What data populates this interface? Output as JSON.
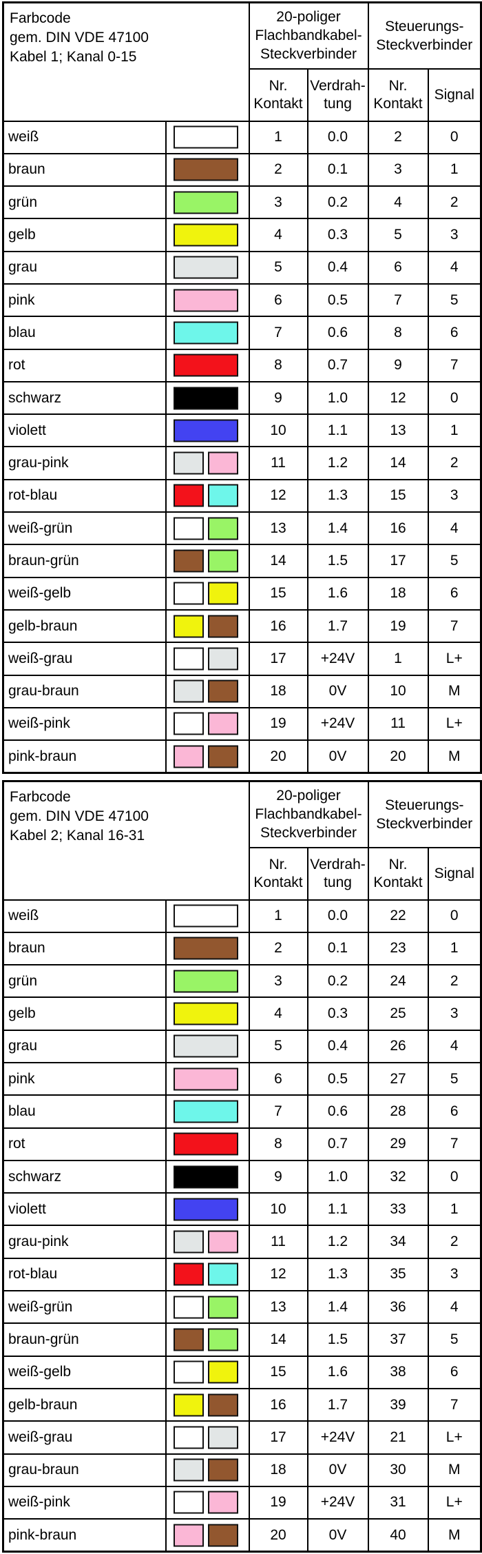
{
  "colors": {
    "weiß": "#ffffff",
    "braun": "#92572f",
    "grün": "#99f466",
    "gelb": "#f0f30d",
    "grau": "#e2e6e6",
    "pink": "#fbb7d6",
    "blau": "#6ef6ea",
    "rot": "#f3121b",
    "schwarz": "#000000",
    "violett": "#4343f1"
  },
  "headers": {
    "group1_line1": "20-poliger",
    "group1_line2": "Flachbandkabel-",
    "group1_line3": "Steckverbinder",
    "group2_line1": "Steuerungs-",
    "group2_line2": "Steckverbinder",
    "nr_line1": "Nr.",
    "nr_line2": "Kontakt",
    "wiring_line1": "Verdrah-",
    "wiring_line2": "tung",
    "signal": "Signal"
  },
  "tables": [
    {
      "title_line1": "Farbcode",
      "title_line2": "gem. DIN VDE 47100",
      "title_line3": "Kabel 1; Kanal 0-15",
      "rows": [
        {
          "name": "weiß",
          "swatches": [
            "weiß"
          ],
          "contact": "1",
          "wiring": "0.0",
          "ctrl": "2",
          "signal": "0"
        },
        {
          "name": "braun",
          "swatches": [
            "braun"
          ],
          "contact": "2",
          "wiring": "0.1",
          "ctrl": "3",
          "signal": "1"
        },
        {
          "name": "grün",
          "swatches": [
            "grün"
          ],
          "contact": "3",
          "wiring": "0.2",
          "ctrl": "4",
          "signal": "2"
        },
        {
          "name": "gelb",
          "swatches": [
            "gelb"
          ],
          "contact": "4",
          "wiring": "0.3",
          "ctrl": "5",
          "signal": "3"
        },
        {
          "name": "grau",
          "swatches": [
            "grau"
          ],
          "contact": "5",
          "wiring": "0.4",
          "ctrl": "6",
          "signal": "4"
        },
        {
          "name": "pink",
          "swatches": [
            "pink"
          ],
          "contact": "6",
          "wiring": "0.5",
          "ctrl": "7",
          "signal": "5"
        },
        {
          "name": "blau",
          "swatches": [
            "blau"
          ],
          "contact": "7",
          "wiring": "0.6",
          "ctrl": "8",
          "signal": "6"
        },
        {
          "name": "rot",
          "swatches": [
            "rot"
          ],
          "contact": "8",
          "wiring": "0.7",
          "ctrl": "9",
          "signal": "7"
        },
        {
          "name": "schwarz",
          "swatches": [
            "schwarz"
          ],
          "contact": "9",
          "wiring": "1.0",
          "ctrl": "12",
          "signal": "0"
        },
        {
          "name": "violett",
          "swatches": [
            "violett"
          ],
          "contact": "10",
          "wiring": "1.1",
          "ctrl": "13",
          "signal": "1"
        },
        {
          "name": "grau-pink",
          "swatches": [
            "grau",
            "pink"
          ],
          "contact": "11",
          "wiring": "1.2",
          "ctrl": "14",
          "signal": "2"
        },
        {
          "name": "rot-blau",
          "swatches": [
            "rot",
            "blau"
          ],
          "contact": "12",
          "wiring": "1.3",
          "ctrl": "15",
          "signal": "3"
        },
        {
          "name": "weiß-grün",
          "swatches": [
            "weiß",
            "grün"
          ],
          "contact": "13",
          "wiring": "1.4",
          "ctrl": "16",
          "signal": "4"
        },
        {
          "name": "braun-grün",
          "swatches": [
            "braun",
            "grün"
          ],
          "contact": "14",
          "wiring": "1.5",
          "ctrl": "17",
          "signal": "5"
        },
        {
          "name": "weiß-gelb",
          "swatches": [
            "weiß",
            "gelb"
          ],
          "contact": "15",
          "wiring": "1.6",
          "ctrl": "18",
          "signal": "6"
        },
        {
          "name": "gelb-braun",
          "swatches": [
            "gelb",
            "braun"
          ],
          "contact": "16",
          "wiring": "1.7",
          "ctrl": "19",
          "signal": "7"
        },
        {
          "name": "weiß-grau",
          "swatches": [
            "weiß",
            "grau"
          ],
          "contact": "17",
          "wiring": "+24V",
          "ctrl": "1",
          "signal": "L+"
        },
        {
          "name": "grau-braun",
          "swatches": [
            "grau",
            "braun"
          ],
          "contact": "18",
          "wiring": "0V",
          "ctrl": "10",
          "signal": "M"
        },
        {
          "name": "weiß-pink",
          "swatches": [
            "weiß",
            "pink"
          ],
          "contact": "19",
          "wiring": "+24V",
          "ctrl": "11",
          "signal": "L+"
        },
        {
          "name": "pink-braun",
          "swatches": [
            "pink",
            "braun"
          ],
          "contact": "20",
          "wiring": "0V",
          "ctrl": "20",
          "signal": "M"
        }
      ]
    },
    {
      "title_line1": "Farbcode",
      "title_line2": "gem. DIN VDE 47100",
      "title_line3": "Kabel 2; Kanal 16-31",
      "rows": [
        {
          "name": "weiß",
          "swatches": [
            "weiß"
          ],
          "contact": "1",
          "wiring": "0.0",
          "ctrl": "22",
          "signal": "0"
        },
        {
          "name": "braun",
          "swatches": [
            "braun"
          ],
          "contact": "2",
          "wiring": "0.1",
          "ctrl": "23",
          "signal": "1"
        },
        {
          "name": "grün",
          "swatches": [
            "grün"
          ],
          "contact": "3",
          "wiring": "0.2",
          "ctrl": "24",
          "signal": "2"
        },
        {
          "name": "gelb",
          "swatches": [
            "gelb"
          ],
          "contact": "4",
          "wiring": "0.3",
          "ctrl": "25",
          "signal": "3"
        },
        {
          "name": "grau",
          "swatches": [
            "grau"
          ],
          "contact": "5",
          "wiring": "0.4",
          "ctrl": "26",
          "signal": "4"
        },
        {
          "name": "pink",
          "swatches": [
            "pink"
          ],
          "contact": "6",
          "wiring": "0.5",
          "ctrl": "27",
          "signal": "5"
        },
        {
          "name": "blau",
          "swatches": [
            "blau"
          ],
          "contact": "7",
          "wiring": "0.6",
          "ctrl": "28",
          "signal": "6"
        },
        {
          "name": "rot",
          "swatches": [
            "rot"
          ],
          "contact": "8",
          "wiring": "0.7",
          "ctrl": "29",
          "signal": "7"
        },
        {
          "name": "schwarz",
          "swatches": [
            "schwarz"
          ],
          "contact": "9",
          "wiring": "1.0",
          "ctrl": "32",
          "signal": "0"
        },
        {
          "name": "violett",
          "swatches": [
            "violett"
          ],
          "contact": "10",
          "wiring": "1.1",
          "ctrl": "33",
          "signal": "1"
        },
        {
          "name": "grau-pink",
          "swatches": [
            "grau",
            "pink"
          ],
          "contact": "11",
          "wiring": "1.2",
          "ctrl": "34",
          "signal": "2"
        },
        {
          "name": "rot-blau",
          "swatches": [
            "rot",
            "blau"
          ],
          "contact": "12",
          "wiring": "1.3",
          "ctrl": "35",
          "signal": "3"
        },
        {
          "name": "weiß-grün",
          "swatches": [
            "weiß",
            "grün"
          ],
          "contact": "13",
          "wiring": "1.4",
          "ctrl": "36",
          "signal": "4"
        },
        {
          "name": "braun-grün",
          "swatches": [
            "braun",
            "grün"
          ],
          "contact": "14",
          "wiring": "1.5",
          "ctrl": "37",
          "signal": "5"
        },
        {
          "name": "weiß-gelb",
          "swatches": [
            "weiß",
            "gelb"
          ],
          "contact": "15",
          "wiring": "1.6",
          "ctrl": "38",
          "signal": "6"
        },
        {
          "name": "gelb-braun",
          "swatches": [
            "gelb",
            "braun"
          ],
          "contact": "16",
          "wiring": "1.7",
          "ctrl": "39",
          "signal": "7"
        },
        {
          "name": "weiß-grau",
          "swatches": [
            "weiß",
            "grau"
          ],
          "contact": "17",
          "wiring": "+24V",
          "ctrl": "21",
          "signal": "L+"
        },
        {
          "name": "grau-braun",
          "swatches": [
            "grau",
            "braun"
          ],
          "contact": "18",
          "wiring": "0V",
          "ctrl": "30",
          "signal": "M"
        },
        {
          "name": "weiß-pink",
          "swatches": [
            "weiß",
            "pink"
          ],
          "contact": "19",
          "wiring": "+24V",
          "ctrl": "31",
          "signal": "L+"
        },
        {
          "name": "pink-braun",
          "swatches": [
            "pink",
            "braun"
          ],
          "contact": "20",
          "wiring": "0V",
          "ctrl": "40",
          "signal": "M"
        }
      ]
    }
  ]
}
